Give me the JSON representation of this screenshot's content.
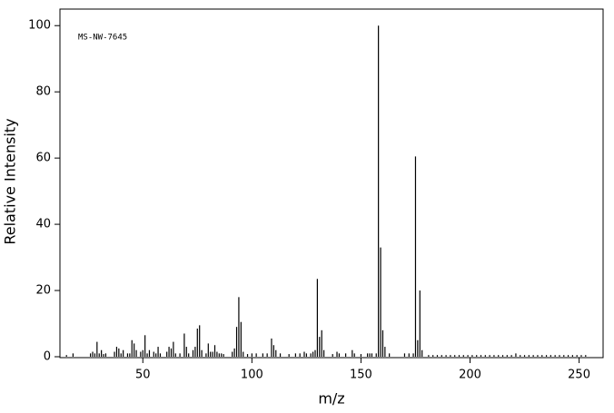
{
  "chart_data": {
    "type": "stick",
    "annotation": "MS-NW-7645",
    "x_label": "m/z",
    "y_label": "Relative Intensity",
    "color": "#000000",
    "x": [
      15,
      18,
      26,
      27,
      28,
      29,
      30,
      31,
      32,
      33,
      37,
      38,
      39,
      40,
      41,
      43,
      44,
      45,
      46,
      47,
      49,
      50,
      51,
      52,
      53,
      55,
      56,
      57,
      58,
      61,
      62,
      63,
      64,
      65,
      67,
      69,
      70,
      71,
      73,
      74,
      75,
      76,
      77,
      79,
      80,
      81,
      82,
      83,
      84,
      85,
      86,
      87,
      91,
      92,
      93,
      94,
      95,
      96,
      98,
      100,
      102,
      105,
      107,
      109,
      110,
      111,
      113,
      117,
      120,
      122,
      124,
      125,
      127,
      128,
      129,
      130,
      131,
      132,
      133,
      137,
      139,
      140,
      143,
      146,
      147,
      150,
      153,
      154,
      155,
      157,
      158,
      159,
      160,
      161,
      163,
      170,
      172,
      174,
      175,
      176,
      177,
      178,
      181,
      183,
      185,
      187,
      189,
      191,
      193,
      195,
      197,
      199,
      201,
      203,
      205,
      207,
      209,
      211,
      213,
      215,
      217,
      219,
      221,
      223,
      225,
      227,
      229,
      231,
      233,
      235,
      237,
      239,
      241,
      243,
      245,
      247,
      249,
      251,
      253
    ],
    "values": [
      0.5,
      1,
      1,
      1.5,
      1,
      4.5,
      1,
      2,
      0.8,
      1,
      1.5,
      3,
      2.5,
      1,
      2,
      1,
      1,
      5,
      4,
      2,
      1.5,
      2,
      6.5,
      1,
      2,
      1.5,
      1,
      3,
      1,
      1.5,
      3,
      2.5,
      4.5,
      1,
      1,
      7,
      3,
      1,
      2,
      3,
      8.5,
      9.5,
      2,
      1,
      4,
      1.5,
      1.5,
      3.5,
      1.5,
      1,
      1,
      0.8,
      1.5,
      2.5,
      9,
      18,
      10.5,
      1.5,
      0.8,
      1,
      1,
      1,
      1,
      5.5,
      3.5,
      2,
      1,
      0.8,
      1,
      1,
      1.5,
      1,
      1,
      1.5,
      2,
      23.5,
      6,
      8,
      2,
      0.8,
      1.5,
      1,
      1,
      2,
      1,
      0.8,
      1,
      1,
      1,
      1,
      100,
      33,
      8,
      3,
      1,
      1,
      1,
      1,
      60.5,
      5,
      20,
      2,
      0.5,
      0.5,
      0.5,
      0.5,
      0.5,
      0.5,
      0.5,
      0.5,
      0.5,
      0.5,
      0.5,
      0.5,
      0.5,
      0.5,
      0.5,
      0.5,
      0.5,
      0.5,
      0.5,
      0.5,
      1,
      0.5,
      0.5,
      0.5,
      0.5,
      0.5,
      0.5,
      0.5,
      0.5,
      0.5,
      0.5,
      0.5,
      0.5,
      0.5,
      0.5,
      0.5,
      0.5
    ],
    "xlim": [
      12,
      261
    ],
    "ylim": [
      0,
      105
    ],
    "xticks": [
      50,
      100,
      150,
      200,
      250
    ],
    "yticks": [
      0,
      20,
      40,
      60,
      80,
      100
    ]
  }
}
